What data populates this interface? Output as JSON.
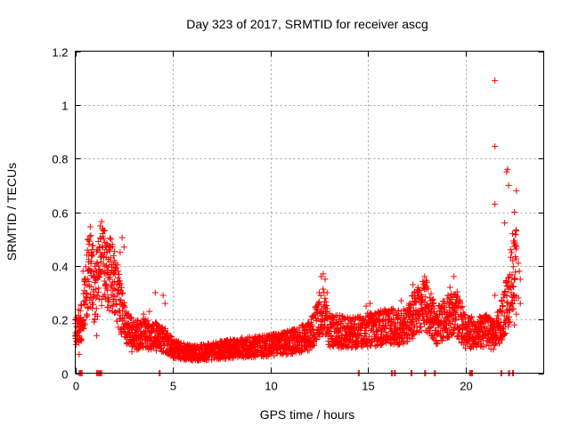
{
  "chart_data": {
    "type": "scatter",
    "title": "Day 323 of 2017, SRMTID for receiver ascg",
    "xlabel": "GPS time / hours",
    "ylabel": "SRMTID / TECUs",
    "xlim": [
      0,
      24
    ],
    "ylim": [
      0,
      1.2
    ],
    "xticks": [
      0,
      5,
      10,
      15,
      20
    ],
    "xtick_labels": [
      "0",
      "5",
      "10",
      "15",
      "20"
    ],
    "yticks": [
      0,
      0.2,
      0.4,
      0.6,
      0.8,
      1.0,
      1.2
    ],
    "ytick_labels": [
      "0",
      "0.2",
      "0.4",
      "0.6",
      "0.8",
      "1",
      "1.2"
    ],
    "grid": true,
    "marker": "+",
    "color": "#ff0000",
    "series": [
      {
        "name": "SRMTID",
        "profile": [
          [
            0.0,
            0.13
          ],
          [
            0.4,
            0.18
          ],
          [
            0.6,
            0.3
          ],
          [
            0.8,
            0.35
          ],
          [
            1.0,
            0.25
          ],
          [
            1.3,
            0.35
          ],
          [
            1.6,
            0.33
          ],
          [
            2.0,
            0.3
          ],
          [
            2.3,
            0.22
          ],
          [
            2.6,
            0.15
          ],
          [
            3.0,
            0.12
          ],
          [
            3.5,
            0.13
          ],
          [
            4.0,
            0.12
          ],
          [
            4.6,
            0.11
          ],
          [
            5.0,
            0.08
          ],
          [
            6.0,
            0.065
          ],
          [
            7.0,
            0.07
          ],
          [
            8.0,
            0.08
          ],
          [
            9.0,
            0.085
          ],
          [
            10.0,
            0.09
          ],
          [
            11.0,
            0.1
          ],
          [
            12.0,
            0.12
          ],
          [
            12.7,
            0.2
          ],
          [
            13.0,
            0.14
          ],
          [
            14.0,
            0.13
          ],
          [
            15.0,
            0.14
          ],
          [
            16.0,
            0.15
          ],
          [
            17.0,
            0.15
          ],
          [
            17.4,
            0.2
          ],
          [
            18.0,
            0.22
          ],
          [
            18.5,
            0.15
          ],
          [
            19.0,
            0.18
          ],
          [
            19.5,
            0.2
          ],
          [
            20.0,
            0.13
          ],
          [
            21.0,
            0.14
          ],
          [
            21.5,
            0.12
          ],
          [
            22.0,
            0.2
          ],
          [
            22.6,
            0.35
          ]
        ],
        "highlights": [
          [
            0.2,
            0.07
          ],
          [
            0.2,
            0.14
          ],
          [
            0.3,
            0.12
          ],
          [
            0.4,
            0.38
          ],
          [
            0.5,
            0.33
          ],
          [
            0.6,
            0.44
          ],
          [
            0.7,
            0.45
          ],
          [
            0.8,
            0.38
          ],
          [
            0.9,
            0.28
          ],
          [
            1.0,
            0.2
          ],
          [
            1.1,
            0.14
          ],
          [
            1.2,
            0.4
          ],
          [
            1.3,
            0.5
          ],
          [
            1.35,
            0.565
          ],
          [
            1.4,
            0.52
          ],
          [
            1.5,
            0.45
          ],
          [
            1.6,
            0.4
          ],
          [
            1.8,
            0.43
          ],
          [
            1.9,
            0.48
          ],
          [
            2.0,
            0.42
          ],
          [
            2.2,
            0.38
          ],
          [
            2.3,
            0.45
          ],
          [
            2.4,
            0.505
          ],
          [
            2.5,
            0.47
          ],
          [
            2.7,
            0.22
          ],
          [
            2.9,
            0.08
          ],
          [
            3.5,
            0.22
          ],
          [
            3.8,
            0.23
          ],
          [
            4.1,
            0.3
          ],
          [
            4.5,
            0.29
          ],
          [
            4.6,
            0.26
          ],
          [
            12.5,
            0.3
          ],
          [
            12.6,
            0.36
          ],
          [
            12.7,
            0.37
          ],
          [
            12.8,
            0.35
          ],
          [
            12.9,
            0.3
          ],
          [
            14.9,
            0.25
          ],
          [
            15.1,
            0.26
          ],
          [
            15.6,
            0.22
          ],
          [
            16.2,
            0.2
          ],
          [
            16.7,
            0.27
          ],
          [
            16.9,
            0.2
          ],
          [
            17.3,
            0.33
          ],
          [
            17.4,
            0.3
          ],
          [
            17.9,
            0.36
          ],
          [
            18.0,
            0.32
          ],
          [
            18.2,
            0.27
          ],
          [
            18.3,
            0.2
          ],
          [
            18.9,
            0.25
          ],
          [
            19.2,
            0.32
          ],
          [
            19.4,
            0.36
          ],
          [
            19.6,
            0.26
          ],
          [
            19.8,
            0.2
          ],
          [
            21.5,
            1.09
          ],
          [
            21.5,
            0.845
          ],
          [
            21.5,
            0.63
          ],
          [
            21.5,
            0.29
          ],
          [
            22.0,
            0.56
          ],
          [
            22.1,
            0.75
          ],
          [
            22.15,
            0.76
          ],
          [
            22.2,
            0.7
          ],
          [
            22.3,
            0.46
          ],
          [
            22.4,
            0.52
          ],
          [
            22.5,
            0.6
          ],
          [
            22.6,
            0.68
          ],
          [
            22.6,
            0.53
          ],
          [
            22.7,
            0.41
          ],
          [
            22.75,
            0.38
          ],
          [
            22.8,
            0.35
          ],
          [
            22.7,
            0.28
          ],
          [
            22.8,
            0.26
          ],
          [
            22.6,
            0.22
          ],
          [
            22.5,
            0.18
          ]
        ],
        "zero_points": [
          0.2,
          0.25,
          0.3,
          1.1,
          1.2,
          1.3,
          4.3,
          14.5,
          16.2,
          16.35,
          17.2,
          17.9,
          18.4,
          20.2,
          20.3,
          21.8,
          22.2,
          22.4
        ]
      }
    ]
  }
}
